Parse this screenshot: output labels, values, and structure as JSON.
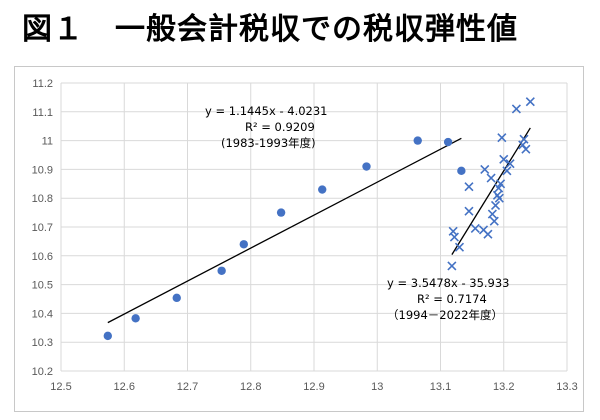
{
  "title": "図１　一般会計税収での税収弾性値",
  "chart_data": {
    "type": "scatter",
    "title": "図１　一般会計税収での税収弾性値",
    "xlim": [
      12.5,
      13.3
    ],
    "ylim": [
      10.2,
      11.2
    ],
    "x_ticks": [
      "12.5",
      "12.6",
      "12.7",
      "12.8",
      "12.9",
      "13",
      "13.1",
      "13.2",
      "13.3"
    ],
    "y_ticks": [
      "10.2",
      "10.3",
      "10.4",
      "10.5",
      "10.6",
      "10.7",
      "10.8",
      "10.9",
      "11",
      "11.1",
      "11.2"
    ],
    "grid": true,
    "series": [
      {
        "marker": "circle",
        "color": "#4472C4",
        "points": [
          [
            12.574,
            10.322
          ],
          [
            12.618,
            10.383
          ],
          [
            12.683,
            10.454
          ],
          [
            12.754,
            10.548
          ],
          [
            12.789,
            10.64
          ],
          [
            12.848,
            10.75
          ],
          [
            12.913,
            10.83
          ],
          [
            12.983,
            10.91
          ],
          [
            13.064,
            11.0
          ],
          [
            13.112,
            10.995
          ],
          [
            13.133,
            10.895
          ]
        ],
        "trendline": {
          "x": [
            12.574,
            13.133
          ],
          "y": [
            10.368,
            11.008
          ]
        },
        "annotation": [
          "y = 1.1445x - 4.0231",
          "R² = 0.9209",
          "(1983-1993年度)"
        ]
      },
      {
        "marker": "x",
        "color": "#4472C4",
        "points": [
          [
            13.118,
            10.565
          ],
          [
            13.12,
            10.685
          ],
          [
            13.122,
            10.665
          ],
          [
            13.13,
            10.63
          ],
          [
            13.145,
            10.84
          ],
          [
            13.145,
            10.755
          ],
          [
            13.155,
            10.695
          ],
          [
            13.168,
            10.69
          ],
          [
            13.17,
            10.9
          ],
          [
            13.175,
            10.675
          ],
          [
            13.18,
            10.87
          ],
          [
            13.182,
            10.745
          ],
          [
            13.185,
            10.72
          ],
          [
            13.187,
            10.775
          ],
          [
            13.19,
            10.81
          ],
          [
            13.192,
            10.835
          ],
          [
            13.193,
            10.8
          ],
          [
            13.195,
            10.85
          ],
          [
            13.197,
            11.01
          ],
          [
            13.2,
            10.935
          ],
          [
            13.205,
            10.895
          ],
          [
            13.21,
            10.92
          ],
          [
            13.22,
            11.11
          ],
          [
            13.23,
            10.985
          ],
          [
            13.232,
            11.005
          ],
          [
            13.235,
            10.97
          ],
          [
            13.242,
            11.135
          ]
        ],
        "trendline": {
          "x": [
            13.118,
            13.242
          ],
          "y": [
            10.604,
            11.044
          ]
        },
        "annotation": [
          "y = 3.5478x - 35.933",
          "R² = 0.7174",
          "（1994－2022年度）"
        ]
      }
    ]
  }
}
